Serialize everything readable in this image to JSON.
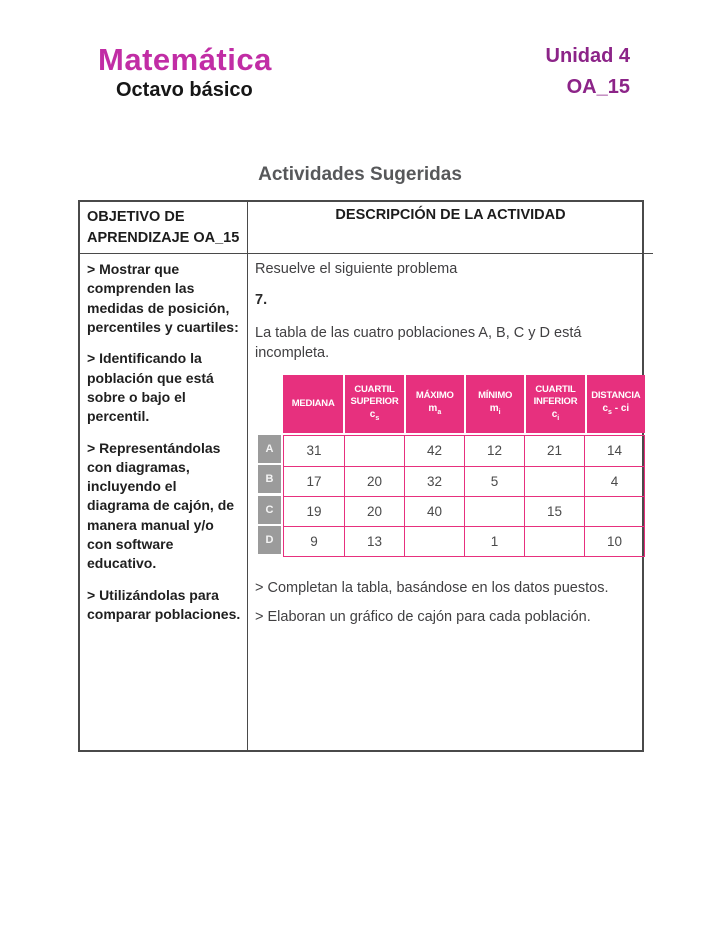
{
  "header": {
    "title": "Matemática",
    "subtitle": "Octavo básico",
    "unit": "Unidad 4",
    "oa": "OA_15"
  },
  "page_title": "Actividades Sugeridas",
  "outer_table": {
    "col1_header": "OBJETIVO DE APRENDIZAJE OA_15",
    "col2_header": "DESCRIPCIÓN DE LA ACTIVIDAD",
    "objetivo_paragraphs": [
      "> Mostrar que comprenden las medidas de posición, percentiles y cuartiles:",
      "> Identificando la población que está sobre o bajo el percentil.",
      "> Representándolas con diagramas, incluyendo el diagrama de cajón, de manera manual y/o con software educativo.",
      "> Utilizándolas para comparar poblaciones."
    ],
    "activity": {
      "intro": "Resuelve el siguiente problema",
      "number": "7.",
      "statement": "La tabla de las cuatro poblaciones A, B, C y D está incompleta.",
      "bullets": [
        "> Completan la tabla, basándose en los datos puestos.",
        "> Elaboran un gráfico de cajón para cada población."
      ]
    }
  },
  "data_table": {
    "columns": [
      {
        "label": "MEDIANA",
        "sym_base": "",
        "sym_sub": "",
        "sym_tail": ""
      },
      {
        "label": "CUARTIL SUPERIOR",
        "sym_base": "c",
        "sym_sub": "s",
        "sym_tail": ""
      },
      {
        "label": "MÁXIMO",
        "sym_base": "m",
        "sym_sub": "a",
        "sym_tail": ""
      },
      {
        "label": "MÍNIMO",
        "sym_base": "m",
        "sym_sub": "i",
        "sym_tail": ""
      },
      {
        "label": "CUARTIL INFERIOR",
        "sym_base": "c",
        "sym_sub": "i",
        "sym_tail": ""
      },
      {
        "label": "DISTANCIA",
        "sym_base": "c",
        "sym_sub": "s",
        "sym_tail": " - ci"
      }
    ],
    "rows": [
      {
        "label": "A",
        "values": [
          "31",
          "",
          "42",
          "12",
          "21",
          "14"
        ]
      },
      {
        "label": "B",
        "values": [
          "17",
          "20",
          "32",
          "5",
          "",
          "4"
        ]
      },
      {
        "label": "C",
        "values": [
          "19",
          "20",
          "40",
          "",
          "15",
          ""
        ]
      },
      {
        "label": "D",
        "values": [
          "9",
          "13",
          "",
          "1",
          "",
          "10"
        ]
      }
    ]
  },
  "colors": {
    "brand_magenta": "#c12da5",
    "unit_purple": "#8c2488",
    "table_pink": "#e7307e",
    "row_label_gray": "#9b9b9b",
    "title_gray": "#57585a"
  }
}
